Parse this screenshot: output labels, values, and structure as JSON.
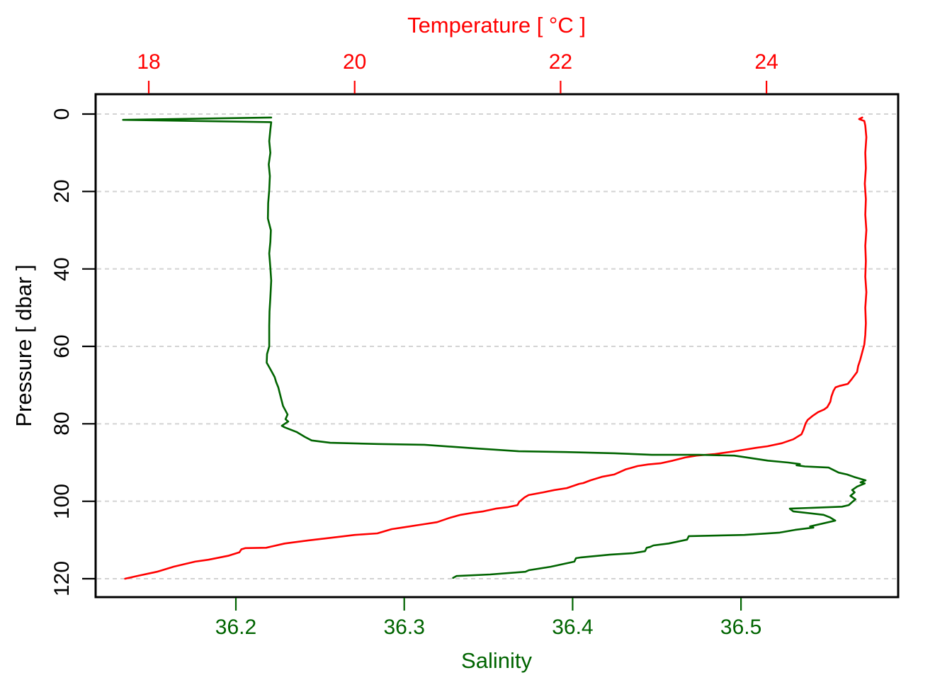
{
  "figure": {
    "background_color": "#ffffff",
    "box_color": "#000000",
    "grid_color": "#d3d3d3"
  },
  "chart_data": {
    "type": "line",
    "title": "",
    "grid": "horizontal dashed lines at each pressure tick",
    "legend": "none",
    "axes": {
      "top": {
        "label": "Temperature [ °C ]",
        "color": "#ff0000",
        "ticks": [
          18,
          20,
          22,
          24
        ],
        "range": [
          17.48,
          25.28
        ]
      },
      "bottom": {
        "label": "Salinity",
        "color": "#006400",
        "ticks": [
          "36.2",
          "36.3",
          "36.4",
          "36.5"
        ],
        "tick_values": [
          36.2,
          36.3,
          36.4,
          36.5
        ],
        "range": [
          36.117,
          36.593
        ]
      },
      "left": {
        "label": "Pressure [ dbar ]",
        "color": "#000000",
        "ticks": [
          0,
          20,
          40,
          60,
          80,
          100,
          120
        ],
        "range": [
          -5.1,
          124.8
        ],
        "inverted": true
      }
    },
    "series": [
      {
        "name": "temperature",
        "x_axis": "top",
        "color": "#ff0000",
        "units": "°C vs dbar",
        "points": [
          [
            24.93,
            0.9
          ],
          [
            24.9,
            1.3
          ],
          [
            24.95,
            1.8
          ],
          [
            24.96,
            3
          ],
          [
            24.97,
            6
          ],
          [
            24.96,
            10
          ],
          [
            24.965,
            14
          ],
          [
            24.955,
            18
          ],
          [
            24.965,
            22
          ],
          [
            24.96,
            26
          ],
          [
            24.97,
            30
          ],
          [
            24.96,
            34
          ],
          [
            24.965,
            38
          ],
          [
            24.96,
            42
          ],
          [
            24.97,
            46
          ],
          [
            24.96,
            50
          ],
          [
            24.965,
            54
          ],
          [
            24.96,
            57
          ],
          [
            24.95,
            59.5
          ],
          [
            24.93,
            61.5
          ],
          [
            24.91,
            63.5
          ],
          [
            24.89,
            65.1
          ],
          [
            24.88,
            66.6
          ],
          [
            24.83,
            68.4
          ],
          [
            24.79,
            69.7
          ],
          [
            24.71,
            70.2
          ],
          [
            24.67,
            70.6
          ],
          [
            24.65,
            71.5
          ],
          [
            24.63,
            73
          ],
          [
            24.62,
            74.3
          ],
          [
            24.59,
            75.7
          ],
          [
            24.56,
            76.3
          ],
          [
            24.5,
            77
          ],
          [
            24.45,
            77.9
          ],
          [
            24.4,
            79
          ],
          [
            24.38,
            79.9
          ],
          [
            24.36,
            81.5
          ],
          [
            24.34,
            82.7
          ],
          [
            24.26,
            84
          ],
          [
            24.15,
            85
          ],
          [
            24.01,
            85.8
          ],
          [
            23.9,
            86.2
          ],
          [
            23.69,
            87.1
          ],
          [
            23.5,
            87.8
          ],
          [
            23.32,
            88.2
          ],
          [
            23.21,
            88.7
          ],
          [
            23.09,
            89.5
          ],
          [
            22.97,
            90.2
          ],
          [
            22.85,
            90.5
          ],
          [
            22.75,
            90.9
          ],
          [
            22.63,
            91.8
          ],
          [
            22.52,
            93.1
          ],
          [
            22.4,
            93.7
          ],
          [
            22.29,
            94.6
          ],
          [
            22.22,
            95.3
          ],
          [
            22.18,
            95.5
          ],
          [
            22.06,
            96.6
          ],
          [
            21.94,
            97.1
          ],
          [
            21.83,
            97.7
          ],
          [
            21.69,
            98.4
          ],
          [
            21.65,
            99
          ],
          [
            21.6,
            100.1
          ],
          [
            21.58,
            101
          ],
          [
            21.49,
            101.5
          ],
          [
            21.37,
            101.9
          ],
          [
            21.25,
            102.6
          ],
          [
            21.14,
            103
          ],
          [
            21.03,
            103.5
          ],
          [
            20.92,
            104.3
          ],
          [
            20.8,
            105.4
          ],
          [
            20.68,
            105.9
          ],
          [
            20.46,
            106.8
          ],
          [
            20.36,
            107.2
          ],
          [
            20.22,
            108.3
          ],
          [
            20,
            108.7
          ],
          [
            19.78,
            109.4
          ],
          [
            19.55,
            110.1
          ],
          [
            19.32,
            110.9
          ],
          [
            19.14,
            112
          ],
          [
            18.94,
            112.1
          ],
          [
            18.9,
            112.4
          ],
          [
            18.88,
            113.2
          ],
          [
            18.77,
            114.1
          ],
          [
            18.58,
            115.1
          ],
          [
            18.45,
            115.6
          ],
          [
            18.24,
            116.9
          ],
          [
            18.08,
            118.2
          ],
          [
            17.92,
            119.1
          ],
          [
            17.77,
            120
          ]
        ]
      },
      {
        "name": "salinity",
        "x_axis": "bottom",
        "color": "#006400",
        "units": "PSU vs dbar",
        "points": [
          [
            36.221,
            0.9
          ],
          [
            36.133,
            1.5
          ],
          [
            36.221,
            2.1
          ],
          [
            36.2205,
            4
          ],
          [
            36.2198,
            7
          ],
          [
            36.2205,
            10
          ],
          [
            36.2195,
            13
          ],
          [
            36.2202,
            16
          ],
          [
            36.2198,
            19.6
          ],
          [
            36.2192,
            23
          ],
          [
            36.219,
            27
          ],
          [
            36.2208,
            30
          ],
          [
            36.2205,
            33
          ],
          [
            36.2198,
            36
          ],
          [
            36.2205,
            39.7
          ],
          [
            36.221,
            43
          ],
          [
            36.2205,
            47.4
          ],
          [
            36.22,
            51
          ],
          [
            36.2198,
            54.7
          ],
          [
            36.2198,
            58
          ],
          [
            36.2198,
            60
          ],
          [
            36.2185,
            62
          ],
          [
            36.2183,
            64.2
          ],
          [
            36.2206,
            66
          ],
          [
            36.223,
            67.9
          ],
          [
            36.224,
            69.3
          ],
          [
            36.2252,
            70.6
          ],
          [
            36.2269,
            73.5
          ],
          [
            36.228,
            75.4
          ],
          [
            36.2307,
            77.6
          ],
          [
            36.2295,
            78.8
          ],
          [
            36.2311,
            79.4
          ],
          [
            36.2273,
            80.5
          ],
          [
            36.229,
            80.9
          ],
          [
            36.236,
            82.1
          ],
          [
            36.241,
            83.4
          ],
          [
            36.245,
            84.3
          ],
          [
            36.256,
            84.9
          ],
          [
            36.284,
            85.2
          ],
          [
            36.312,
            85.4
          ],
          [
            36.341,
            86.3
          ],
          [
            36.368,
            87.1
          ],
          [
            36.396,
            87.3
          ],
          [
            36.425,
            87.6
          ],
          [
            36.447,
            88
          ],
          [
            36.475,
            88
          ],
          [
            36.496,
            88.2
          ],
          [
            36.516,
            89.5
          ],
          [
            36.528,
            90
          ],
          [
            36.535,
            90.4
          ],
          [
            36.533,
            90.7
          ],
          [
            36.538,
            91
          ],
          [
            36.552,
            91.3
          ],
          [
            36.558,
            92.6
          ],
          [
            36.563,
            93.1
          ],
          [
            36.567,
            93.7
          ],
          [
            36.574,
            94.6
          ],
          [
            36.571,
            95.1
          ],
          [
            36.5735,
            95.4
          ],
          [
            36.569,
            96.2
          ],
          [
            36.566,
            97.1
          ],
          [
            36.5675,
            97.7
          ],
          [
            36.565,
            98.6
          ],
          [
            36.568,
            99.5
          ],
          [
            36.5655,
            100.4
          ],
          [
            36.564,
            101
          ],
          [
            36.56,
            101.4
          ],
          [
            36.529,
            101.9
          ],
          [
            36.531,
            102.6
          ],
          [
            36.549,
            103.5
          ],
          [
            36.553,
            104.2
          ],
          [
            36.556,
            105
          ],
          [
            36.541,
            106.5
          ],
          [
            36.543,
            106.8
          ],
          [
            36.532,
            107.4
          ],
          [
            36.523,
            108.1
          ],
          [
            36.502,
            108.7
          ],
          [
            36.469,
            109
          ],
          [
            36.468,
            109.9
          ],
          [
            36.457,
            110.9
          ],
          [
            36.448,
            111.4
          ],
          [
            36.446,
            111.8
          ],
          [
            36.444,
            112
          ],
          [
            36.443,
            112.9
          ],
          [
            36.436,
            113.4
          ],
          [
            36.422,
            113.8
          ],
          [
            36.405,
            114.5
          ],
          [
            36.402,
            114.7
          ],
          [
            36.401,
            115.6
          ],
          [
            36.387,
            116.9
          ],
          [
            36.374,
            117.8
          ],
          [
            36.372,
            118.2
          ],
          [
            36.351,
            118.9
          ],
          [
            36.331,
            119.3
          ],
          [
            36.329,
            119.8
          ]
        ]
      }
    ]
  }
}
